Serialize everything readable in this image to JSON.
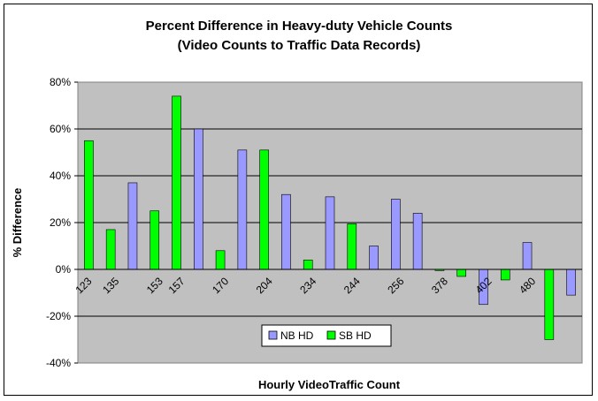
{
  "chart_data": {
    "type": "bar",
    "title": "Percent Difference in Heavy-duty Vehicle Counts",
    "subtitle": "(Video Counts to Traffic Data Records)",
    "xlabel": "Hourly VideoTraffic Count",
    "ylabel": "% Difference",
    "ylim": [
      -40,
      80
    ],
    "yticks": [
      -40,
      -20,
      0,
      20,
      40,
      60,
      80
    ],
    "ytick_labels": [
      "-40%",
      "-20%",
      "0%",
      "20%",
      "40%",
      "60%",
      "80%"
    ],
    "grid": true,
    "legend_position": "bottom-center",
    "categories": [
      "123",
      "135",
      "153",
      "157",
      "170",
      "204",
      "234",
      "244",
      "256",
      "378",
      "402",
      "480"
    ],
    "slots": [
      {
        "series": "SB HD",
        "value": 55,
        "category_index": 0
      },
      {
        "series": "SB HD",
        "value": 17,
        "category_index": 1
      },
      {
        "series": "NB HD",
        "value": 37,
        "category_index": 1
      },
      {
        "series": "SB HD",
        "value": 25,
        "category_index": 2
      },
      {
        "series": "SB HD",
        "value": 74,
        "category_index": 3
      },
      {
        "series": "NB HD",
        "value": 60,
        "category_index": 3
      },
      {
        "series": "SB HD",
        "value": 8,
        "category_index": 4
      },
      {
        "series": "NB HD",
        "value": 51,
        "category_index": 4
      },
      {
        "series": "SB HD",
        "value": 51,
        "category_index": 5
      },
      {
        "series": "NB HD",
        "value": 32,
        "category_index": 5
      },
      {
        "series": "SB HD",
        "value": 4,
        "category_index": 6
      },
      {
        "series": "NB HD",
        "value": 31,
        "category_index": 6
      },
      {
        "series": "SB HD",
        "value": 19.5,
        "category_index": 7
      },
      {
        "series": "NB HD",
        "value": 10,
        "category_index": 7
      },
      {
        "series": "NB HD",
        "value": 30,
        "category_index": 8
      },
      {
        "series": "NB HD",
        "value": 24,
        "category_index": 8
      },
      {
        "series": "SB HD",
        "value": -0.5,
        "category_index": 9
      },
      {
        "series": "SB HD",
        "value": -3,
        "category_index": 9
      },
      {
        "series": "NB HD",
        "value": -15,
        "category_index": 10
      },
      {
        "series": "SB HD",
        "value": -4.5,
        "category_index": 10
      },
      {
        "series": "NB HD",
        "value": 11.5,
        "category_index": 11
      },
      {
        "series": "SB HD",
        "value": -30,
        "category_index": 11
      },
      {
        "series": "NB HD",
        "value": -11,
        "category_index": 11
      }
    ],
    "series": [
      {
        "name": "NB HD",
        "color": "#9999ff"
      },
      {
        "name": "SB HD",
        "color": "#00ff00"
      }
    ]
  }
}
